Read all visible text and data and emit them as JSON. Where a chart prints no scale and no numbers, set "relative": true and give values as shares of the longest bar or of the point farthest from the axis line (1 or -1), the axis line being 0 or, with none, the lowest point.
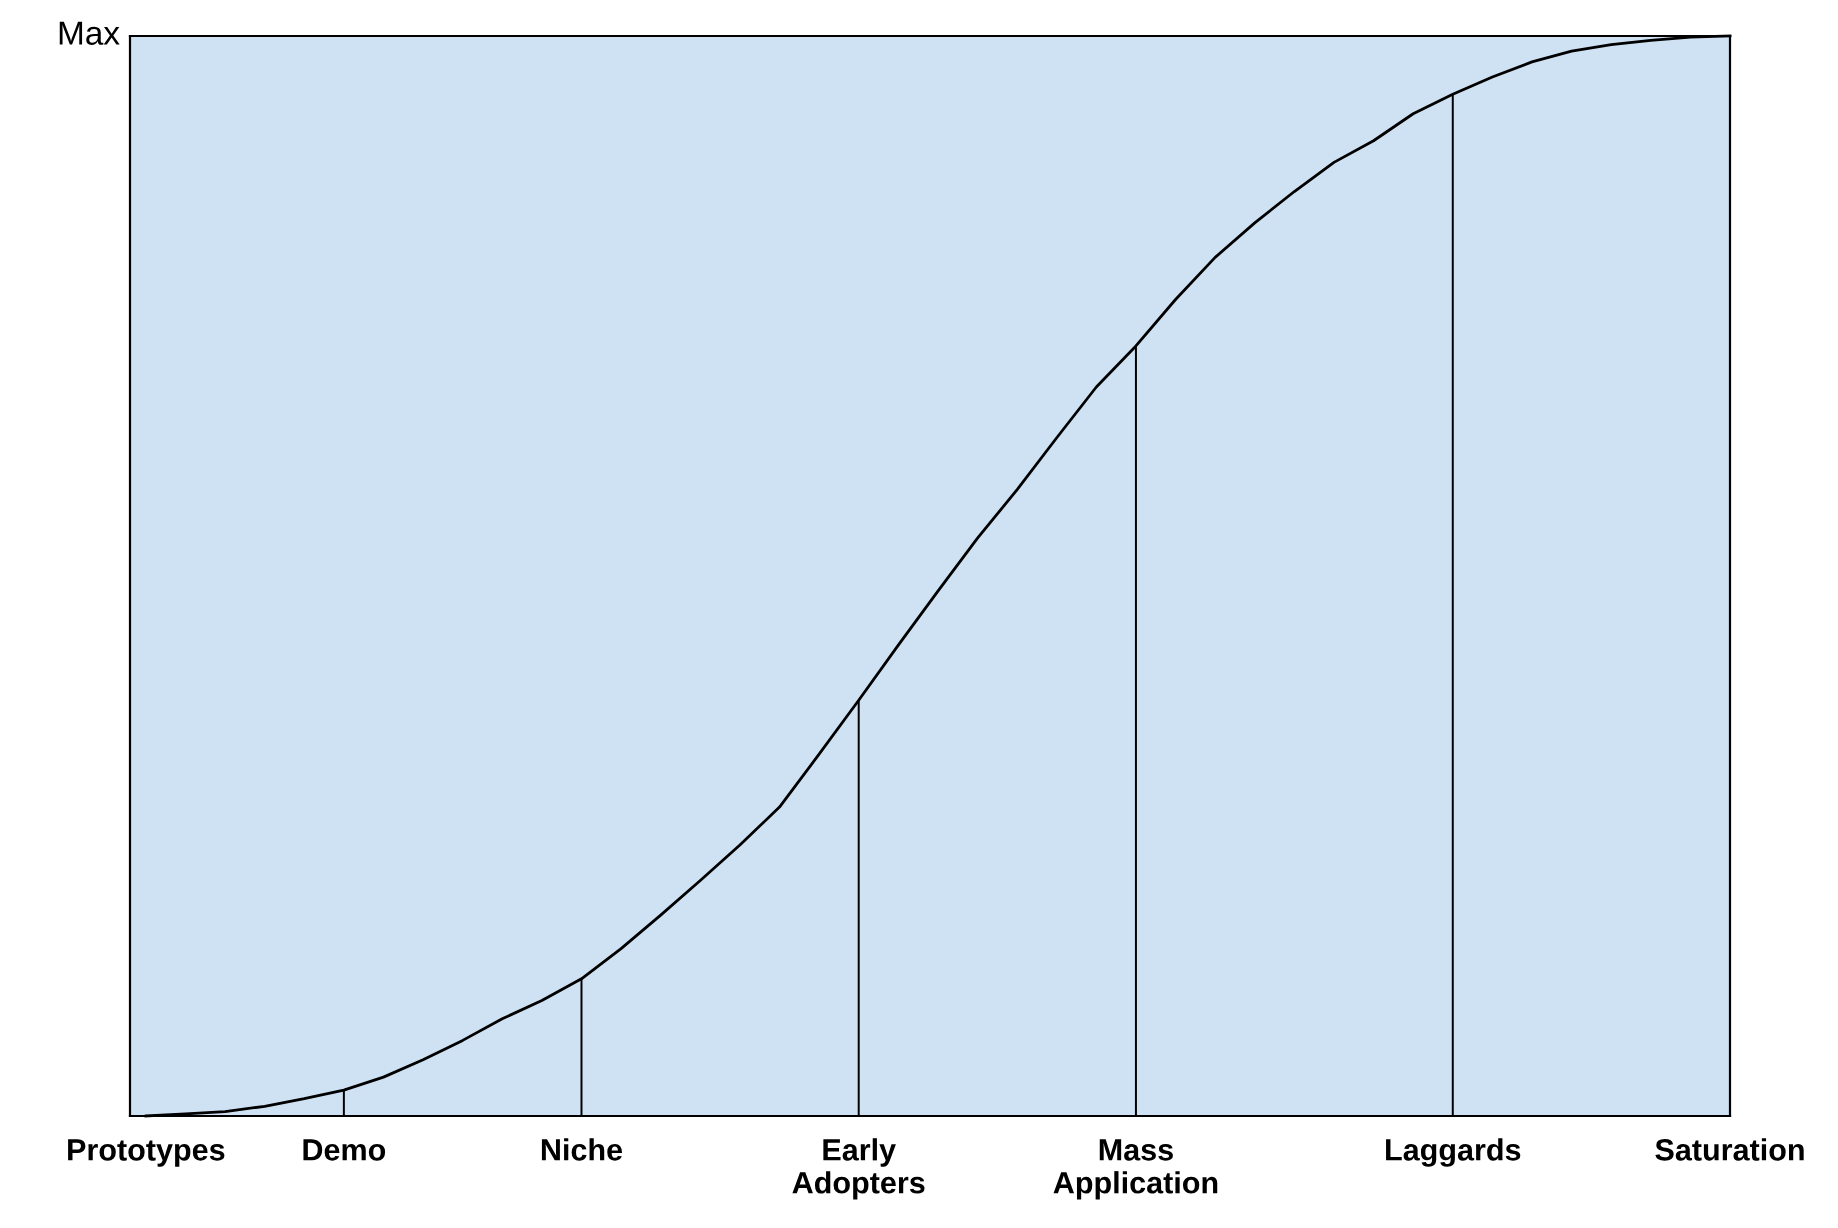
{
  "chart_data": {
    "type": "line",
    "relative": true,
    "categories": [
      "Prototypes",
      null,
      null,
      null,
      null,
      "Demo",
      null,
      null,
      null,
      null,
      null,
      "Niche",
      null,
      null,
      null,
      null,
      null,
      null,
      "Early\nAdopters",
      null,
      null,
      null,
      null,
      null,
      null,
      "Mass\nApplication",
      null,
      null,
      null,
      null,
      null,
      null,
      null,
      "Laggards",
      null,
      null,
      null,
      null,
      null,
      null,
      "Saturation"
    ],
    "series": [
      {
        "color": "#000000",
        "values": [
          0,
          0.002,
          0.004,
          0.009,
          0.016,
          0.024,
          0.036,
          0.052,
          0.07,
          0.09,
          0.107,
          0.127,
          0.155,
          0.186,
          0.218,
          0.251,
          0.286,
          0.335,
          0.385,
          0.436,
          0.486,
          0.535,
          0.58,
          0.628,
          0.675,
          0.713,
          0.756,
          0.795,
          0.827,
          0.856,
          0.883,
          0.903,
          0.928,
          0.946,
          0.962,
          0.976,
          0.986,
          0.992,
          0.996,
          0.999,
          1
        ]
      },
      {
        "type": "bar",
        "color": "#000000",
        "values": [
          null,
          null,
          null,
          null,
          null,
          0.024,
          null,
          null,
          null,
          null,
          null,
          0.127,
          null,
          null,
          null,
          null,
          null,
          null,
          0.385,
          null,
          null,
          null,
          null,
          null,
          null,
          0.713,
          null,
          null,
          null,
          null,
          null,
          null,
          null,
          0.946,
          null,
          null,
          null,
          null,
          null,
          null,
          null
        ]
      }
    ],
    "annotations": [
      "Max"
    ],
    "marker": "none"
  }
}
